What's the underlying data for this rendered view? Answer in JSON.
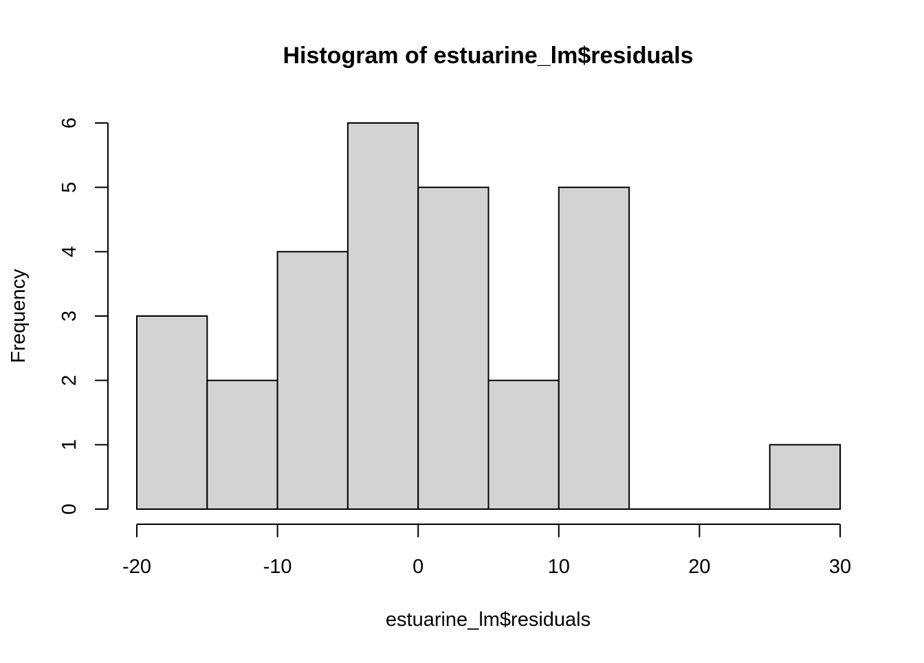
{
  "chart_data": {
    "type": "bar",
    "title": "Histogram of estuarine_lm$residuals",
    "xlabel": "estuarine_lm$residuals",
    "ylabel": "Frequency",
    "bins": [
      {
        "start": -20,
        "end": -15,
        "count": 3
      },
      {
        "start": -15,
        "end": -10,
        "count": 2
      },
      {
        "start": -10,
        "end": -5,
        "count": 4
      },
      {
        "start": -5,
        "end": 0,
        "count": 6
      },
      {
        "start": 0,
        "end": 5,
        "count": 5
      },
      {
        "start": 5,
        "end": 10,
        "count": 2
      },
      {
        "start": 10,
        "end": 15,
        "count": 5
      },
      {
        "start": 15,
        "end": 20,
        "count": 0
      },
      {
        "start": 20,
        "end": 25,
        "count": 0
      },
      {
        "start": 25,
        "end": 30,
        "count": 1
      }
    ],
    "xlim": [
      -20,
      30
    ],
    "ylim": [
      0,
      6
    ],
    "x_ticks": [
      -20,
      -10,
      0,
      10,
      20,
      30
    ],
    "x_tick_labels": [
      "-20",
      "-10",
      "0",
      "10",
      "20",
      "30"
    ],
    "y_ticks": [
      0,
      1,
      2,
      3,
      4,
      5,
      6
    ],
    "y_tick_labels": [
      "0",
      "1",
      "2",
      "3",
      "4",
      "5",
      "6"
    ],
    "grid": false,
    "bar_fill": "#d3d3d3",
    "bar_stroke": "#000000"
  }
}
